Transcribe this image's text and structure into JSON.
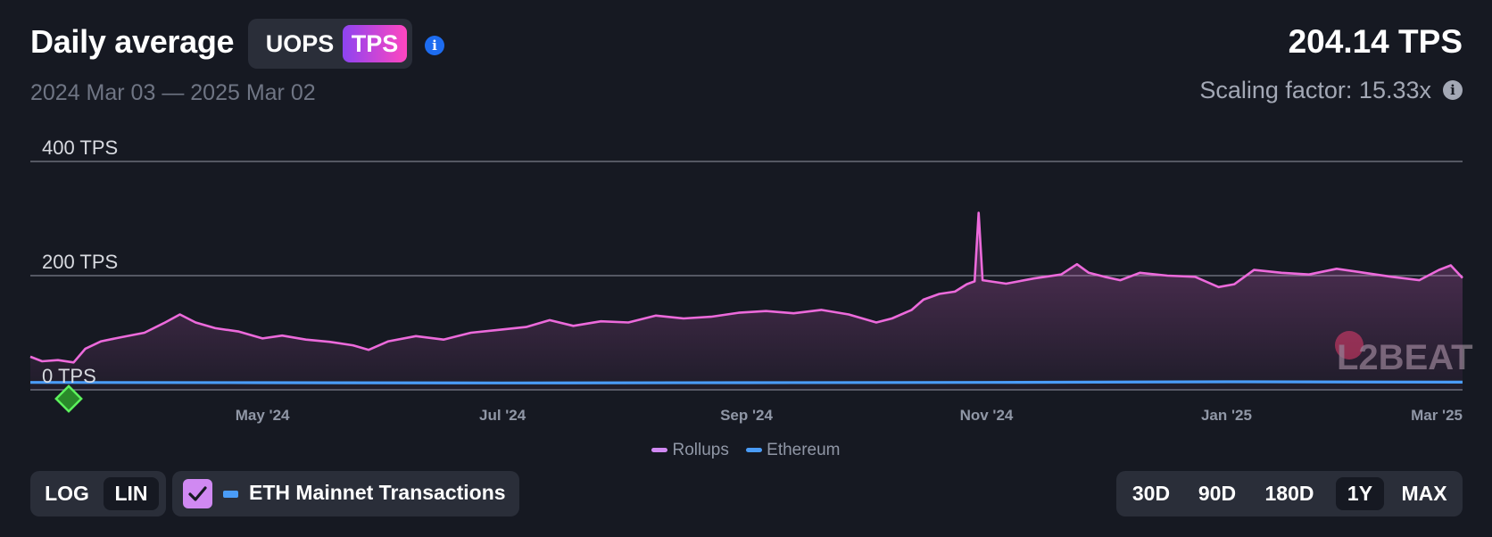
{
  "header": {
    "title": "Daily average",
    "metric_options": [
      "UOPS",
      "TPS"
    ],
    "selected_metric": "TPS"
  },
  "date_range": "2024 Mar 03 — 2025 Mar 02",
  "summary": {
    "value": "204.14 TPS",
    "scaling_factor": "Scaling factor: 15.33x"
  },
  "controls": {
    "scale_options": [
      "LOG",
      "LIN"
    ],
    "selected_scale": "LIN",
    "eth_toggle_label": "ETH Mainnet Transactions",
    "eth_toggle_checked": true,
    "range_options": [
      "30D",
      "90D",
      "180D",
      "1Y",
      "MAX"
    ],
    "selected_range": "1Y"
  },
  "watermark": "L2BEAT",
  "colors": {
    "rollups": "#ec6adb",
    "ethereum": "#4a9cf7",
    "tps_gradient_start": "#8d44f1",
    "tps_gradient_end": "#ff46c0",
    "background": "#161922"
  },
  "chart_data": {
    "type": "area",
    "title": "",
    "y_ticks": [
      {
        "value": 0,
        "label": "0 TPS"
      },
      {
        "value": 200,
        "label": "200 TPS"
      },
      {
        "value": 400,
        "label": "400 TPS"
      }
    ],
    "ylim": [
      0,
      400
    ],
    "xlim": [
      "2024-03-03",
      "2025-03-02"
    ],
    "x_ticks": [
      {
        "date": "2024-05-01",
        "label": "May '24"
      },
      {
        "date": "2024-07-01",
        "label": "Jul '24"
      },
      {
        "date": "2024-09-01",
        "label": "Sep '24"
      },
      {
        "date": "2024-11-01",
        "label": "Nov '24"
      },
      {
        "date": "2025-01-01",
        "label": "Jan '25"
      },
      {
        "date": "2025-03-01",
        "label": "Mar '25"
      }
    ],
    "grid": true,
    "legend_position": "bottom-center",
    "series": [
      {
        "name": "Rollups",
        "points": [
          [
            "2024-03-03",
            58
          ],
          [
            "2024-03-06",
            50
          ],
          [
            "2024-03-10",
            52
          ],
          [
            "2024-03-14",
            48
          ],
          [
            "2024-03-17",
            72
          ],
          [
            "2024-03-21",
            85
          ],
          [
            "2024-03-26",
            92
          ],
          [
            "2024-04-01",
            100
          ],
          [
            "2024-04-06",
            117
          ],
          [
            "2024-04-10",
            132
          ],
          [
            "2024-04-14",
            118
          ],
          [
            "2024-04-19",
            108
          ],
          [
            "2024-04-25",
            102
          ],
          [
            "2024-05-01",
            90
          ],
          [
            "2024-05-06",
            95
          ],
          [
            "2024-05-12",
            88
          ],
          [
            "2024-05-18",
            84
          ],
          [
            "2024-05-24",
            78
          ],
          [
            "2024-05-28",
            70
          ],
          [
            "2024-06-02",
            85
          ],
          [
            "2024-06-09",
            94
          ],
          [
            "2024-06-16",
            88
          ],
          [
            "2024-06-23",
            100
          ],
          [
            "2024-06-30",
            105
          ],
          [
            "2024-07-07",
            110
          ],
          [
            "2024-07-13",
            122
          ],
          [
            "2024-07-19",
            112
          ],
          [
            "2024-07-26",
            120
          ],
          [
            "2024-08-02",
            118
          ],
          [
            "2024-08-09",
            130
          ],
          [
            "2024-08-16",
            125
          ],
          [
            "2024-08-23",
            128
          ],
          [
            "2024-08-30",
            135
          ],
          [
            "2024-09-06",
            138
          ],
          [
            "2024-09-13",
            134
          ],
          [
            "2024-09-20",
            140
          ],
          [
            "2024-09-27",
            132
          ],
          [
            "2024-10-04",
            118
          ],
          [
            "2024-10-08",
            125
          ],
          [
            "2024-10-13",
            140
          ],
          [
            "2024-10-16",
            158
          ],
          [
            "2024-10-20",
            168
          ],
          [
            "2024-10-24",
            172
          ],
          [
            "2024-10-27",
            185
          ],
          [
            "2024-10-29",
            190
          ],
          [
            "2024-10-30",
            310
          ],
          [
            "2024-10-31",
            192
          ],
          [
            "2024-11-06",
            186
          ],
          [
            "2024-11-13",
            195
          ],
          [
            "2024-11-20",
            202
          ],
          [
            "2024-11-24",
            220
          ],
          [
            "2024-11-27",
            205
          ],
          [
            "2024-12-01",
            198
          ],
          [
            "2024-12-05",
            192
          ],
          [
            "2024-12-10",
            205
          ],
          [
            "2024-12-17",
            200
          ],
          [
            "2024-12-24",
            198
          ],
          [
            "2024-12-30",
            180
          ],
          [
            "2025-01-03",
            185
          ],
          [
            "2025-01-08",
            210
          ],
          [
            "2025-01-15",
            205
          ],
          [
            "2025-01-22",
            202
          ],
          [
            "2025-01-29",
            212
          ],
          [
            "2025-02-05",
            205
          ],
          [
            "2025-02-12",
            198
          ],
          [
            "2025-02-19",
            192
          ],
          [
            "2025-02-24",
            210
          ],
          [
            "2025-02-27",
            218
          ],
          [
            "2025-03-02",
            196
          ]
        ]
      },
      {
        "name": "Ethereum",
        "points": [
          [
            "2024-03-03",
            13
          ],
          [
            "2024-05-01",
            12.5
          ],
          [
            "2024-07-01",
            12
          ],
          [
            "2024-09-01",
            12.5
          ],
          [
            "2024-11-01",
            13
          ],
          [
            "2025-01-01",
            14
          ],
          [
            "2025-03-02",
            13.5
          ]
        ]
      }
    ]
  }
}
